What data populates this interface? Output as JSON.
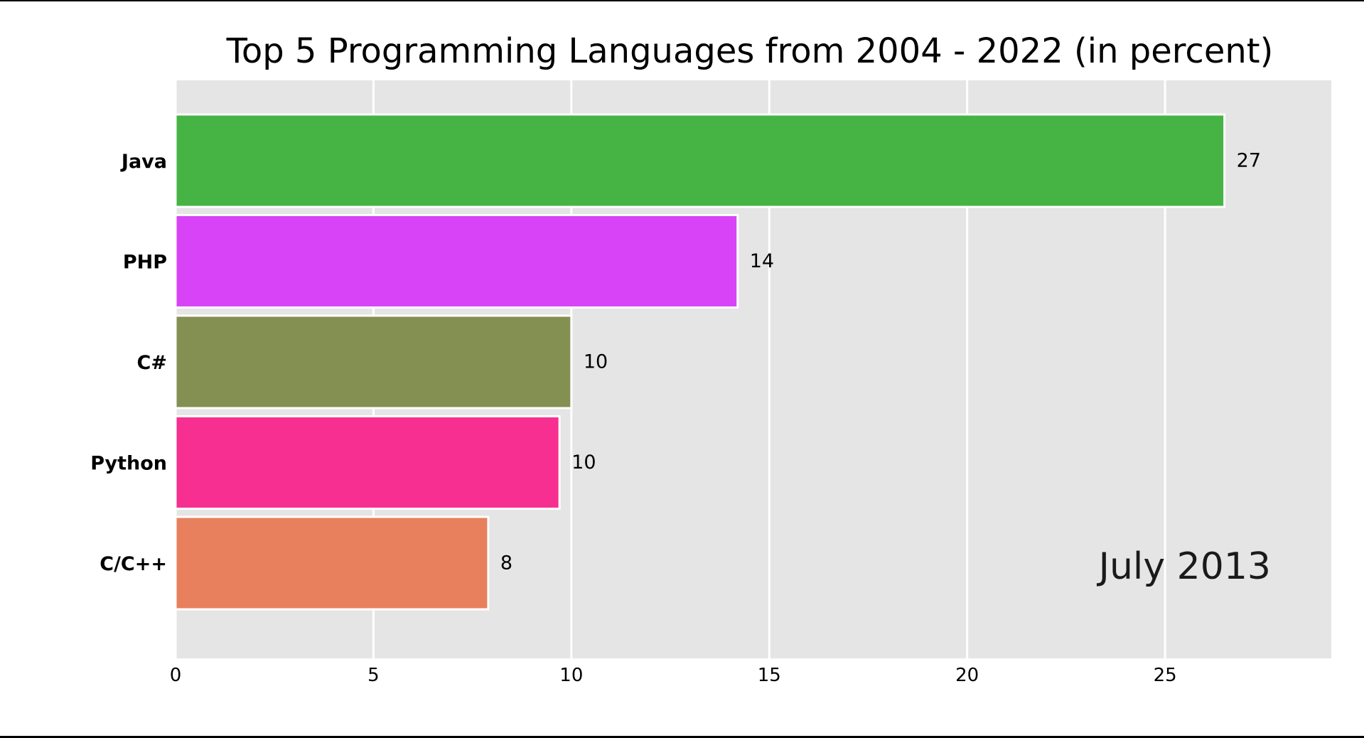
{
  "chart_data": {
    "type": "bar",
    "orientation": "horizontal",
    "title": "Top 5 Programming Languages from 2004 - 2022 (in percent)",
    "xlabel": "",
    "ylabel": "",
    "period_label": "July 2013",
    "xlim": [
      0,
      29.2
    ],
    "xticks": [
      0,
      5,
      10,
      15,
      20,
      25
    ],
    "grid": true,
    "bars": [
      {
        "label": "Java",
        "value": 26.5,
        "display": "27",
        "color": "#45b445"
      },
      {
        "label": "PHP",
        "value": 14.2,
        "display": "14",
        "color": "#d943f8"
      },
      {
        "label": "C#",
        "value": 10.0,
        "display": "10",
        "color": "#848f52"
      },
      {
        "label": "Python",
        "value": 9.7,
        "display": "10",
        "color": "#f62f91"
      },
      {
        "label": "C/C++",
        "value": 7.9,
        "display": "8",
        "color": "#e8805d"
      }
    ]
  }
}
